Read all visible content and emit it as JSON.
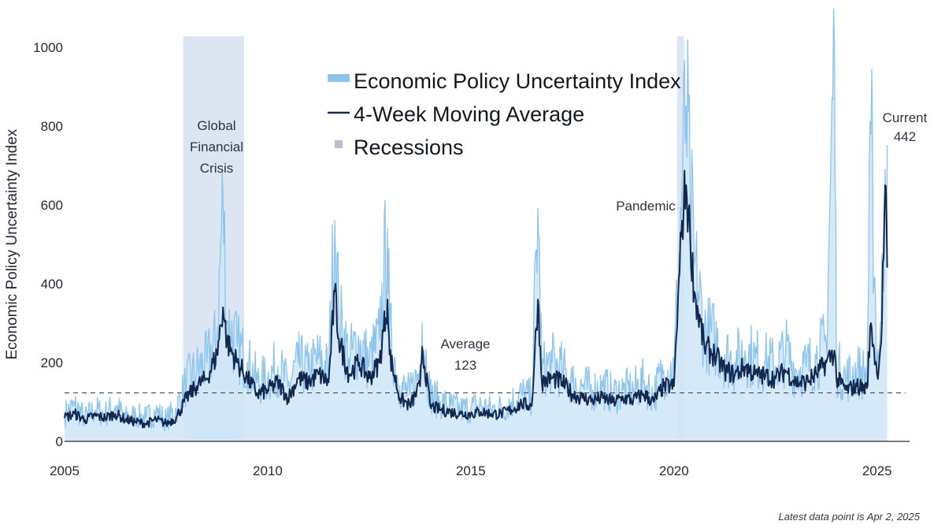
{
  "chart_data": {
    "type": "line",
    "title": "",
    "xlabel": "",
    "ylabel": "Economic Policy Uncertainty Index",
    "xlim": [
      2005,
      2025.8
    ],
    "ylim": [
      0,
      1000
    ],
    "x_ticks": [
      2005,
      2010,
      2015,
      2020,
      2025
    ],
    "y_ticks": [
      0,
      200,
      400,
      600,
      800,
      1000
    ],
    "grid": false,
    "legend_position": "top-center",
    "legend": [
      "Economic Policy Uncertainty Index",
      "4-Week Moving Average",
      "Recessions"
    ],
    "colors": {
      "daily_line": "#8cc4ee",
      "daily_fill": "#cfe5f8",
      "moving_average": "#13284e",
      "recession": "#dce6f2",
      "average_line": "#333a44",
      "axis": "#2a2f36"
    },
    "average": {
      "value": 123,
      "label": "Average",
      "value_label": "123"
    },
    "recessions": [
      {
        "start": 2007.92,
        "end": 2009.42,
        "label_lines": [
          "Global",
          "Financial",
          "Crisis"
        ]
      },
      {
        "start": 2020.08,
        "end": 2020.25,
        "label_lines": [
          "Pandemic"
        ]
      }
    ],
    "current": {
      "label": "Current",
      "value_label": "442",
      "value": 442
    },
    "series": [
      {
        "name": "Economic Policy Uncertainty Index",
        "x": [
          2005.0,
          2005.25,
          2005.5,
          2005.75,
          2006.0,
          2006.25,
          2006.5,
          2006.75,
          2007.0,
          2007.25,
          2007.5,
          2007.75,
          2008.0,
          2008.25,
          2008.5,
          2008.75,
          2008.9,
          2009.0,
          2009.25,
          2009.5,
          2009.75,
          2010.0,
          2010.25,
          2010.5,
          2010.75,
          2011.0,
          2011.25,
          2011.5,
          2011.65,
          2011.75,
          2012.0,
          2012.25,
          2012.5,
          2012.75,
          2012.95,
          2013.0,
          2013.25,
          2013.5,
          2013.75,
          2013.8,
          2014.0,
          2014.25,
          2014.5,
          2014.75,
          2015.0,
          2015.25,
          2015.5,
          2015.75,
          2016.0,
          2016.25,
          2016.5,
          2016.65,
          2016.75,
          2017.0,
          2017.25,
          2017.5,
          2017.75,
          2018.0,
          2018.25,
          2018.5,
          2018.75,
          2019.0,
          2019.25,
          2019.5,
          2019.75,
          2020.0,
          2020.2,
          2020.3,
          2020.4,
          2020.5,
          2020.75,
          2021.0,
          2021.25,
          2021.5,
          2021.75,
          2022.0,
          2022.25,
          2022.5,
          2022.75,
          2023.0,
          2023.25,
          2023.5,
          2023.75,
          2023.95,
          2024.0,
          2024.25,
          2024.5,
          2024.75,
          2024.85,
          2025.0,
          2025.1,
          2025.2,
          2025.25
        ],
        "values": [
          70,
          90,
          60,
          80,
          70,
          90,
          60,
          65,
          60,
          75,
          55,
          80,
          150,
          180,
          200,
          260,
          620,
          300,
          240,
          200,
          150,
          160,
          190,
          140,
          200,
          180,
          210,
          180,
          560,
          320,
          210,
          250,
          200,
          260,
          540,
          280,
          140,
          120,
          180,
          300,
          120,
          100,
          90,
          80,
          85,
          90,
          80,
          85,
          100,
          120,
          110,
          590,
          180,
          200,
          180,
          150,
          140,
          130,
          140,
          120,
          130,
          130,
          150,
          120,
          180,
          180,
          650,
          850,
          620,
          450,
          280,
          260,
          220,
          200,
          230,
          210,
          200,
          190,
          230,
          180,
          190,
          210,
          250,
          1020,
          190,
          160,
          180,
          170,
          780,
          200,
          300,
          690,
          750
        ]
      },
      {
        "name": "4-Week Moving Average",
        "x": [
          2005.0,
          2005.25,
          2005.5,
          2005.75,
          2006.0,
          2006.25,
          2006.5,
          2006.75,
          2007.0,
          2007.25,
          2007.5,
          2007.75,
          2008.0,
          2008.25,
          2008.5,
          2008.75,
          2008.9,
          2009.0,
          2009.25,
          2009.5,
          2009.75,
          2010.0,
          2010.25,
          2010.5,
          2010.75,
          2011.0,
          2011.25,
          2011.5,
          2011.65,
          2011.75,
          2012.0,
          2012.25,
          2012.5,
          2012.75,
          2012.95,
          2013.0,
          2013.25,
          2013.5,
          2013.75,
          2013.8,
          2014.0,
          2014.25,
          2014.5,
          2014.75,
          2015.0,
          2015.25,
          2015.5,
          2015.75,
          2016.0,
          2016.25,
          2016.5,
          2016.65,
          2016.75,
          2017.0,
          2017.25,
          2017.5,
          2017.75,
          2018.0,
          2018.25,
          2018.5,
          2018.75,
          2019.0,
          2019.25,
          2019.5,
          2019.75,
          2020.0,
          2020.2,
          2020.3,
          2020.4,
          2020.5,
          2020.75,
          2021.0,
          2021.25,
          2021.5,
          2021.75,
          2022.0,
          2022.25,
          2022.5,
          2022.75,
          2023.0,
          2023.25,
          2023.5,
          2023.75,
          2023.95,
          2024.0,
          2024.25,
          2024.5,
          2024.75,
          2024.85,
          2025.0,
          2025.1,
          2025.2,
          2025.25
        ],
        "values": [
          60,
          70,
          55,
          65,
          60,
          70,
          55,
          50,
          45,
          55,
          45,
          60,
          110,
          140,
          160,
          220,
          340,
          250,
          200,
          160,
          120,
          130,
          150,
          110,
          160,
          150,
          170,
          150,
          380,
          260,
          170,
          200,
          160,
          200,
          360,
          220,
          110,
          90,
          140,
          240,
          90,
          80,
          75,
          70,
          70,
          75,
          70,
          70,
          80,
          95,
          90,
          360,
          150,
          160,
          150,
          120,
          110,
          105,
          110,
          100,
          110,
          105,
          120,
          100,
          140,
          140,
          560,
          650,
          520,
          380,
          240,
          220,
          180,
          170,
          190,
          170,
          165,
          160,
          180,
          150,
          150,
          170,
          200,
          230,
          160,
          130,
          140,
          135,
          300,
          170,
          250,
          650,
          442
        ]
      }
    ]
  },
  "footnote": "Latest data point is Apr 2, 2025"
}
